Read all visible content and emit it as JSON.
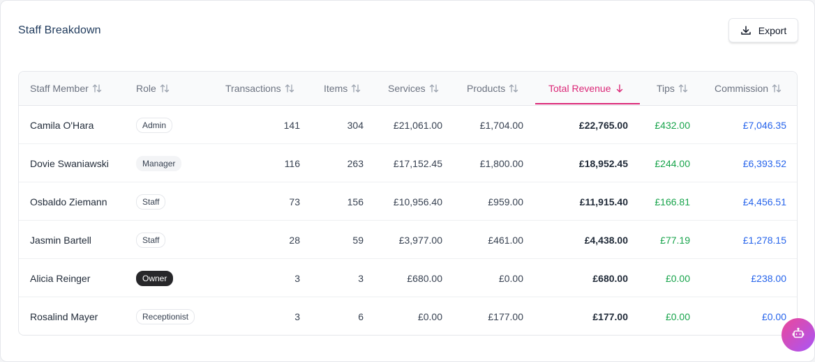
{
  "title": "Staff Breakdown",
  "export_label": "Export",
  "columns": [
    "Staff Member",
    "Role",
    "Transactions",
    "Items",
    "Services",
    "Products",
    "Total Revenue",
    "Tips",
    "Commission"
  ],
  "sorted_column": "Total Revenue",
  "sort_direction": "desc",
  "rows": [
    {
      "name": "Camila O'Hara",
      "role": "Admin",
      "transactions": "141",
      "items": "304",
      "services": "£21,061.00",
      "products": "£1,704.00",
      "total": "£22,765.00",
      "tips": "£432.00",
      "commission": "£7,046.35"
    },
    {
      "name": "Dovie Swaniawski",
      "role": "Manager",
      "transactions": "116",
      "items": "263",
      "services": "£17,152.45",
      "products": "£1,800.00",
      "total": "£18,952.45",
      "tips": "£244.00",
      "commission": "£6,393.52"
    },
    {
      "name": "Osbaldo Ziemann",
      "role": "Staff",
      "transactions": "73",
      "items": "156",
      "services": "£10,956.40",
      "products": "£959.00",
      "total": "£11,915.40",
      "tips": "£166.81",
      "commission": "£4,456.51"
    },
    {
      "name": "Jasmin Bartell",
      "role": "Staff",
      "transactions": "28",
      "items": "59",
      "services": "£3,977.00",
      "products": "£461.00",
      "total": "£4,438.00",
      "tips": "£77.19",
      "commission": "£1,278.15"
    },
    {
      "name": "Alicia Reinger",
      "role": "Owner",
      "transactions": "3",
      "items": "3",
      "services": "£680.00",
      "products": "£0.00",
      "total": "£680.00",
      "tips": "£0.00",
      "commission": "£238.00"
    },
    {
      "name": "Rosalind Mayer",
      "role": "Receptionist",
      "transactions": "3",
      "items": "6",
      "services": "£0.00",
      "products": "£177.00",
      "total": "£177.00",
      "tips": "£0.00",
      "commission": "£0.00"
    }
  ],
  "colors": {
    "accent": "#db2777",
    "tips": "#16a34a",
    "commission": "#2563eb",
    "title": "#1f3a5c"
  },
  "icons": {
    "export": "download-icon",
    "sort": "sort-arrows-icon",
    "sorted": "arrow-down-icon",
    "assistant": "bot-icon"
  }
}
